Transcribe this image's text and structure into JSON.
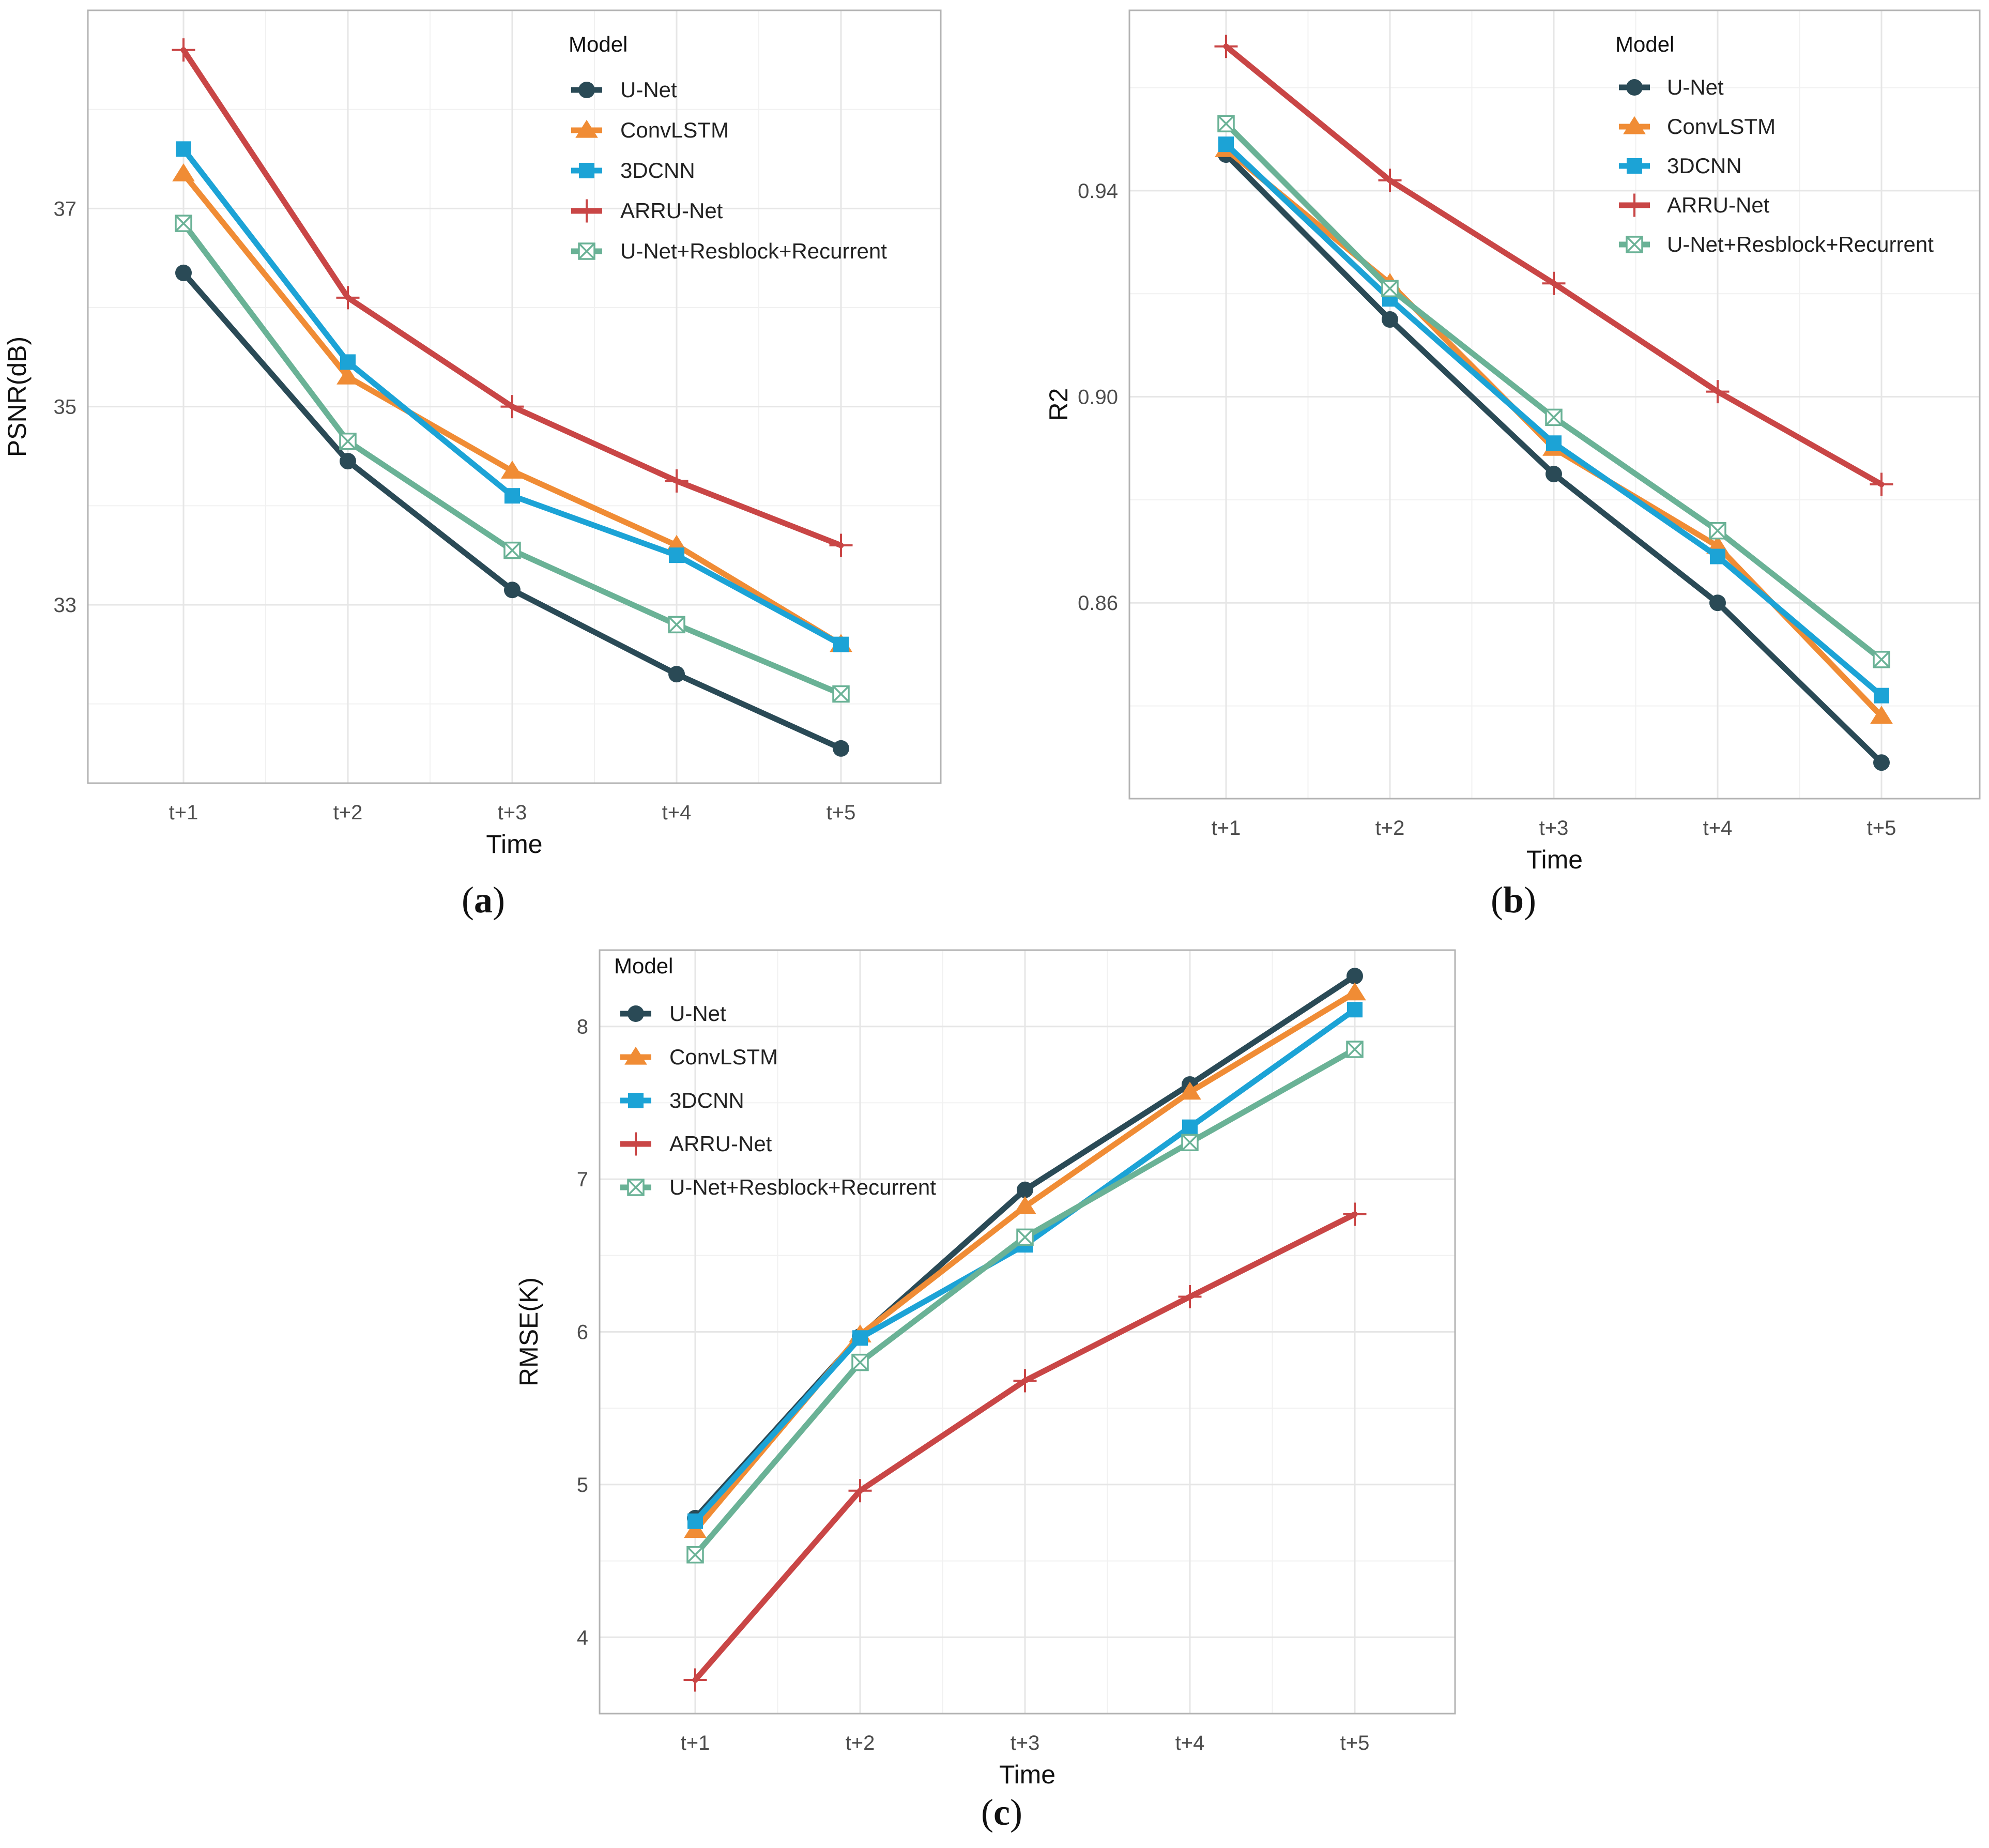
{
  "colors": {
    "U-Net": "#2a4a56",
    "ConvLSTM": "#f08c35",
    "3DCNN": "#1ca3d6",
    "ARRU-Net": "#c94646",
    "U-Net+Resblock+Recurrent": "#6ab296"
  },
  "markers": {
    "U-Net": "circle",
    "ConvLSTM": "triangle",
    "3DCNN": "square",
    "ARRU-Net": "plus",
    "U-Net+Resblock+Recurrent": "boxcross"
  },
  "chart_data": [
    {
      "id": "a",
      "type": "line",
      "caption": "a",
      "xlabel": "Time",
      "ylabel": "PSNR(dB)",
      "categories": [
        "t+1",
        "t+2",
        "t+3",
        "t+4",
        "t+5"
      ],
      "ylim": [
        31.2,
        39.0
      ],
      "yticks": [
        {
          "v": 33,
          "label": "33"
        },
        {
          "v": 35,
          "label": "35"
        },
        {
          "v": 37,
          "label": "37"
        }
      ],
      "yminor": [
        32,
        34,
        36,
        38
      ],
      "legend_title": "Model",
      "legend_position": "top-right",
      "series": [
        {
          "name": "U-Net",
          "values": [
            36.35,
            34.45,
            33.15,
            32.3,
            31.55
          ]
        },
        {
          "name": "ConvLSTM",
          "values": [
            37.35,
            35.3,
            34.35,
            33.6,
            32.6
          ]
        },
        {
          "name": "3DCNN",
          "values": [
            37.6,
            35.45,
            34.1,
            33.5,
            32.6
          ]
        },
        {
          "name": "ARRU-Net",
          "values": [
            38.6,
            36.1,
            35.0,
            34.25,
            33.6
          ]
        },
        {
          "name": "U-Net+Resblock+Recurrent",
          "values": [
            36.85,
            34.65,
            33.55,
            32.8,
            32.1
          ]
        }
      ]
    },
    {
      "id": "b",
      "type": "line",
      "caption": "b",
      "xlabel": "Time",
      "ylabel": "R2",
      "categories": [
        "t+1",
        "t+2",
        "t+3",
        "t+4",
        "t+5"
      ],
      "ylim": [
        0.822,
        0.975
      ],
      "yticks": [
        {
          "v": 0.86,
          "label": "0.86"
        },
        {
          "v": 0.9,
          "label": "0.90"
        },
        {
          "v": 0.94,
          "label": "0.94"
        }
      ],
      "yminor": [
        0.84,
        0.88,
        0.92,
        0.96
      ],
      "legend_title": "Model",
      "legend_position": "top-right",
      "series": [
        {
          "name": "U-Net",
          "values": [
            0.947,
            0.915,
            0.885,
            0.86,
            0.829
          ]
        },
        {
          "name": "ConvLSTM",
          "values": [
            0.948,
            0.922,
            0.89,
            0.871,
            0.838
          ]
        },
        {
          "name": "3DCNN",
          "values": [
            0.949,
            0.919,
            0.891,
            0.869,
            0.842
          ]
        },
        {
          "name": "ARRU-Net",
          "values": [
            0.968,
            0.942,
            0.922,
            0.901,
            0.883
          ]
        },
        {
          "name": "U-Net+Resblock+Recurrent",
          "values": [
            0.953,
            0.921,
            0.896,
            0.874,
            0.849
          ]
        }
      ]
    },
    {
      "id": "c",
      "type": "line",
      "caption": "c",
      "xlabel": "Time",
      "ylabel": "RMSE(K)",
      "categories": [
        "t+1",
        "t+2",
        "t+3",
        "t+4",
        "t+5"
      ],
      "ylim": [
        3.5,
        8.5
      ],
      "yticks": [
        {
          "v": 4,
          "label": "4"
        },
        {
          "v": 5,
          "label": "5"
        },
        {
          "v": 6,
          "label": "6"
        },
        {
          "v": 7,
          "label": "7"
        },
        {
          "v": 8,
          "label": "8"
        }
      ],
      "yminor": [
        4.5,
        5.5,
        6.5,
        7.5
      ],
      "legend_title": "Model",
      "legend_position": "top-left",
      "series": [
        {
          "name": "U-Net",
          "values": [
            4.78,
            5.97,
            6.93,
            7.62,
            8.33
          ]
        },
        {
          "name": "ConvLSTM",
          "values": [
            4.7,
            5.98,
            6.82,
            7.57,
            8.22
          ]
        },
        {
          "name": "3DCNN",
          "values": [
            4.76,
            5.96,
            6.57,
            7.34,
            8.11
          ]
        },
        {
          "name": "ARRU-Net",
          "values": [
            3.72,
            4.96,
            5.68,
            6.23,
            6.77
          ]
        },
        {
          "name": "U-Net+Resblock+Recurrent",
          "values": [
            4.54,
            5.8,
            6.62,
            7.24,
            7.85
          ]
        }
      ]
    }
  ]
}
